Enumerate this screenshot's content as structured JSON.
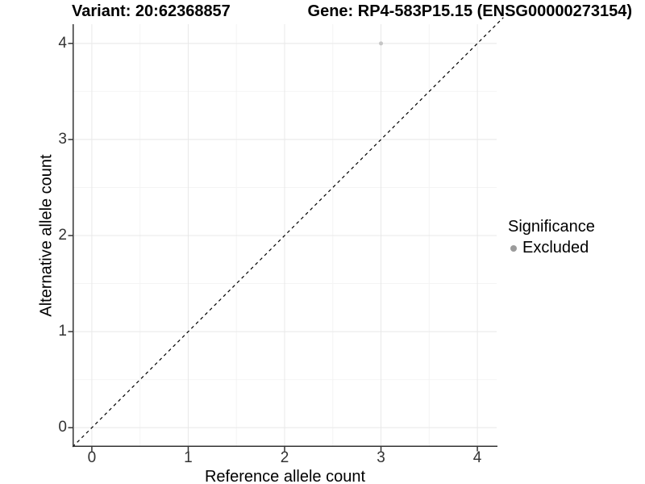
{
  "header": {
    "variant_title": "Variant: 20:62368857",
    "gene_title": "Gene: RP4-583P15.15 (ENSG00000273154)"
  },
  "chart_data": {
    "type": "scatter",
    "xlabel": "Reference allele count",
    "ylabel": "Alternative allele count",
    "x_ticks": [
      0,
      1,
      2,
      3,
      4
    ],
    "y_ticks": [
      0,
      1,
      2,
      3,
      4
    ],
    "xlim": [
      -0.2,
      4.2
    ],
    "ylim": [
      -0.2,
      4.2
    ],
    "grid": {
      "major": true,
      "minor": true,
      "major_color": "#e8e8e8",
      "minor_color": "#f4f4f4"
    },
    "axis_color": "#333333",
    "tick_label_color": "#333333",
    "identity_line": {
      "style": "dashed",
      "color": "#000000",
      "from": -0.2,
      "to": 4.27,
      "dash": "4,4"
    },
    "series": [
      {
        "name": "Excluded",
        "color": "#c6c6c6",
        "marker_radius": 2.5,
        "points": [
          [
            3,
            4
          ]
        ]
      }
    ],
    "legend": {
      "title": "Significance",
      "position": "right",
      "items": [
        {
          "label": "Excluded",
          "color": "#9b9b9b"
        }
      ]
    }
  }
}
